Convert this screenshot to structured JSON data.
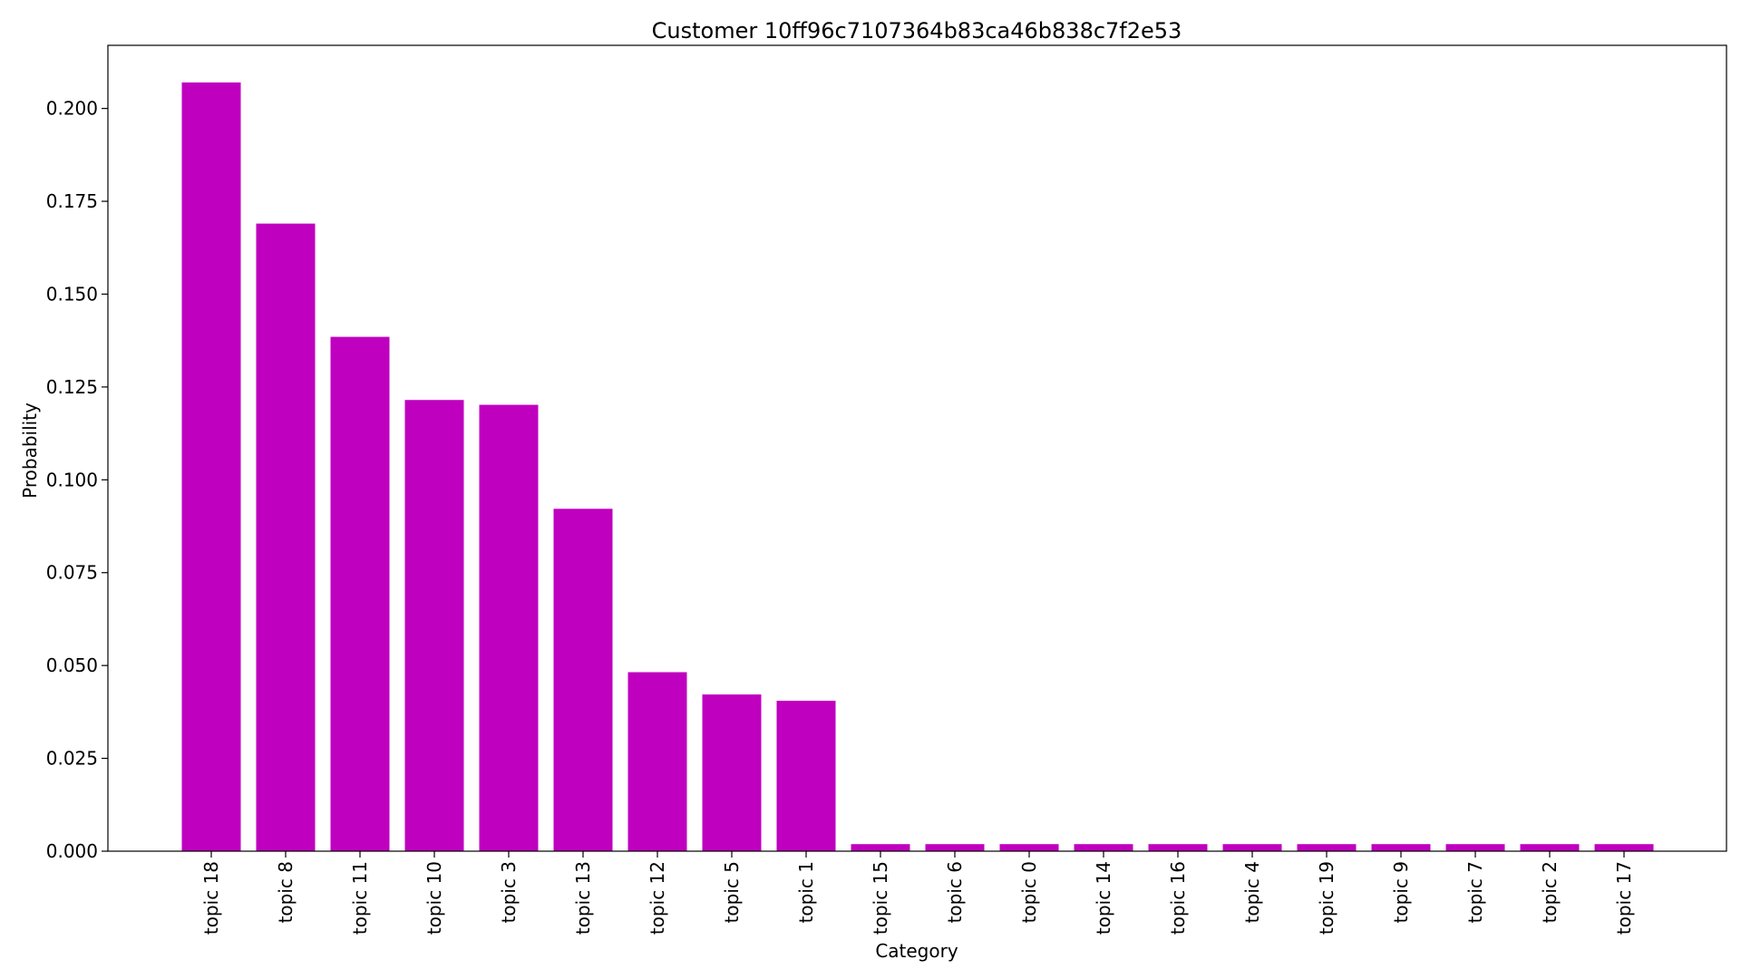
{
  "chart_data": {
    "type": "bar",
    "title": "Customer 10ff96c7107364b83ca46b838c7f2e53",
    "xlabel": "Category",
    "ylabel": "Probability",
    "categories": [
      "topic 18",
      "topic 8",
      "topic 11",
      "topic 10",
      "topic 3",
      "topic 13",
      "topic 12",
      "topic 5",
      "topic 1",
      "topic 15",
      "topic 6",
      "topic 0",
      "topic 14",
      "topic 16",
      "topic 4",
      "topic 19",
      "topic 9",
      "topic 7",
      "topic 2",
      "topic 17"
    ],
    "values": [
      0.207,
      0.169,
      0.1385,
      0.1215,
      0.1202,
      0.0922,
      0.0482,
      0.0422,
      0.0405,
      0.0019,
      0.0019,
      0.0019,
      0.0019,
      0.0019,
      0.0019,
      0.0019,
      0.0019,
      0.0019,
      0.0019,
      0.0019
    ],
    "ylim": [
      0,
      0.217
    ],
    "yticks": [
      0.0,
      0.025,
      0.05,
      0.075,
      0.1,
      0.125,
      0.15,
      0.175,
      0.2
    ],
    "ytick_labels": [
      "0.000",
      "0.025",
      "0.050",
      "0.075",
      "0.100",
      "0.125",
      "0.150",
      "0.175",
      "0.200"
    ],
    "bar_color": "#bf00bf",
    "grid": false,
    "legend": "none"
  }
}
